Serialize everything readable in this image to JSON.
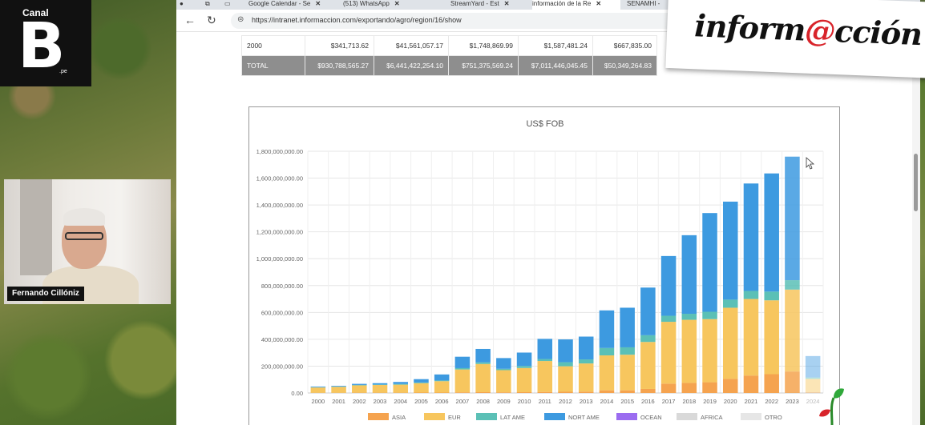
{
  "overlay": {
    "channel_logo": {
      "top": "Canal",
      "letter": "B",
      "suffix": ".pe"
    },
    "presenter_name": "Fernando Cillóniz",
    "brand": {
      "before": "inform",
      "at": "@",
      "after": "cción"
    }
  },
  "browser": {
    "tabs": [
      {
        "label": "Google Calendar - Se",
        "active": false
      },
      {
        "label": "(513) WhatsApp",
        "active": false
      },
      {
        "label": "StreamYard - Est",
        "active": false
      },
      {
        "label": "información de la Re",
        "active": true
      },
      {
        "label": "SENAMHI -",
        "active": false
      }
    ],
    "url": "https://intranet.informaccion.com/exportando/agro/region/16/show"
  },
  "table": {
    "rows": [
      {
        "label": "2000",
        "cells": [
          "$341,713.62",
          "$41,561,057.17",
          "$1,748,869.99",
          "$1,587,481.24",
          "$667,835.00"
        ]
      },
      {
        "label": "TOTAL",
        "cells": [
          "$930,788,565.27",
          "$6,441,422,254.10",
          "$751,375,569.24",
          "$7,011,446,045.45",
          "$50,349,264.83"
        ]
      }
    ]
  },
  "chart_data": {
    "type": "bar",
    "stacked": true,
    "title": "US$ FOB",
    "categories": [
      "2000",
      "2001",
      "2002",
      "2003",
      "2004",
      "2005",
      "2006",
      "2007",
      "2008",
      "2009",
      "2010",
      "2011",
      "2012",
      "2013",
      "2014",
      "2015",
      "2016",
      "2017",
      "2018",
      "2019",
      "2020",
      "2021",
      "2022",
      "2023",
      "2024"
    ],
    "series": [
      {
        "name": "ASIA",
        "color": "#f5a34f",
        "values": [
          1000000,
          1000000,
          2000000,
          2000000,
          2000000,
          3000000,
          3000000,
          5000000,
          6000000,
          5000000,
          6000000,
          8000000,
          9000000,
          10000000,
          20000000,
          20000000,
          30000000,
          70000000,
          75000000,
          80000000,
          105000000,
          130000000,
          140000000,
          160000000,
          5000000
        ]
      },
      {
        "name": "EUR",
        "color": "#f7c65e",
        "values": [
          40000000,
          45000000,
          55000000,
          58000000,
          60000000,
          70000000,
          85000000,
          170000000,
          210000000,
          165000000,
          180000000,
          230000000,
          190000000,
          210000000,
          260000000,
          265000000,
          350000000,
          460000000,
          470000000,
          470000000,
          530000000,
          570000000,
          550000000,
          610000000,
          100000000
        ]
      },
      {
        "name": "LAT AME",
        "color": "#5bc0b6",
        "values": [
          2000000,
          2000000,
          3000000,
          3000000,
          5000000,
          5000000,
          5000000,
          10000000,
          12000000,
          10000000,
          15000000,
          15000000,
          30000000,
          30000000,
          55000000,
          55000000,
          50000000,
          45000000,
          45000000,
          55000000,
          60000000,
          60000000,
          65000000,
          70000000,
          10000000
        ]
      },
      {
        "name": "NORT AME",
        "color": "#3d9ae0",
        "values": [
          5000000,
          5000000,
          8000000,
          10000000,
          15000000,
          25000000,
          45000000,
          85000000,
          100000000,
          80000000,
          100000000,
          150000000,
          170000000,
          170000000,
          280000000,
          295000000,
          355000000,
          445000000,
          585000000,
          735000000,
          730000000,
          800000000,
          880000000,
          920000000,
          160000000
        ]
      },
      {
        "name": "OCEAN",
        "color": "#9b6cf0",
        "values": [
          0,
          0,
          0,
          0,
          0,
          0,
          0,
          0,
          0,
          0,
          0,
          0,
          0,
          0,
          0,
          0,
          0,
          0,
          0,
          0,
          0,
          0,
          0,
          0,
          0
        ]
      },
      {
        "name": "AFRICA",
        "color": "#d9d9d9",
        "values": [
          0,
          0,
          0,
          0,
          0,
          0,
          0,
          0,
          0,
          0,
          0,
          0,
          0,
          0,
          0,
          0,
          0,
          0,
          0,
          0,
          0,
          0,
          0,
          0,
          0
        ]
      },
      {
        "name": "OTRO",
        "color": "#e6e6e6",
        "values": [
          0,
          0,
          0,
          0,
          0,
          0,
          0,
          0,
          0,
          0,
          0,
          0,
          0,
          0,
          0,
          0,
          0,
          0,
          0,
          0,
          0,
          0,
          0,
          0,
          0
        ]
      }
    ],
    "ylim": [
      0,
      1800000000
    ],
    "yticks": [
      "0.00",
      "200,000,000.00",
      "400,000,000.00",
      "600,000,000.00",
      "800,000,000.00",
      "1,000,000,000.00",
      "1,200,000,000.00",
      "1,400,000,000.00",
      "1,600,000,000.00",
      "1,800,000,000.00"
    ],
    "grid": true,
    "legend": "bottom",
    "faded_categories": [
      "2023",
      "2024"
    ]
  }
}
